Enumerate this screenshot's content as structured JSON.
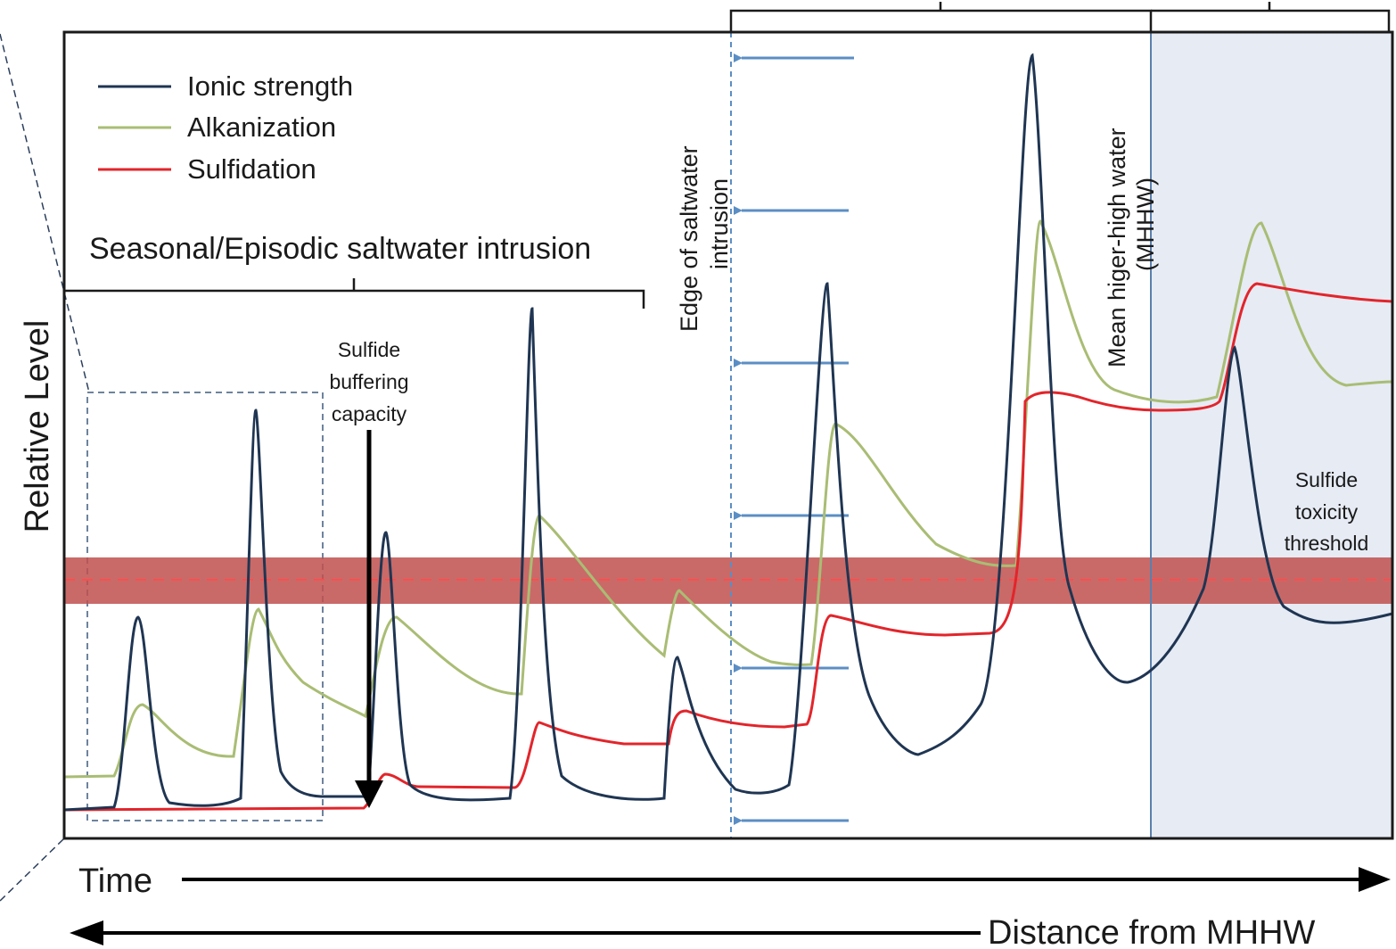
{
  "figure": {
    "y_axis_label": "Relative Level",
    "x_axis_time_label": "Time",
    "x_axis_distance_label": "Distance from MHHW",
    "intrusion_bracket_label": "Seasonal/Episodic saltwater intrusion",
    "buffering_label_lines": [
      "Sulfide",
      "buffering",
      "capacity"
    ],
    "edge_label_lines": [
      "Edge of saltwater",
      "intrusion"
    ],
    "mhhw_label_lines": [
      "Mean higer-high water",
      "(MHHW)"
    ],
    "threshold_label_lines": [
      "Sulfide",
      "toxicity",
      "threshold"
    ]
  },
  "legend": {
    "items": [
      {
        "label": "Ionic strength",
        "color": "#1f3552"
      },
      {
        "label": "Alkanization",
        "color": "#a9bd74"
      },
      {
        "label": "Sulfidation",
        "color": "#e2252b"
      }
    ]
  },
  "colors": {
    "ionic": "#1f3552",
    "alkanization": "#a9bd74",
    "sulfidation": "#e2252b",
    "threshold_band": "#c0504d",
    "guide_dashed": "#5b8ec4",
    "mhhw_zone": "#e6ebf4"
  },
  "icons": {
    "edge_arrows": "left-arrow-icon",
    "buffering_arrow": "down-arrow-icon",
    "time_arrow": "right-arrow-icon",
    "distance_arrow": "left-arrow-icon"
  }
}
